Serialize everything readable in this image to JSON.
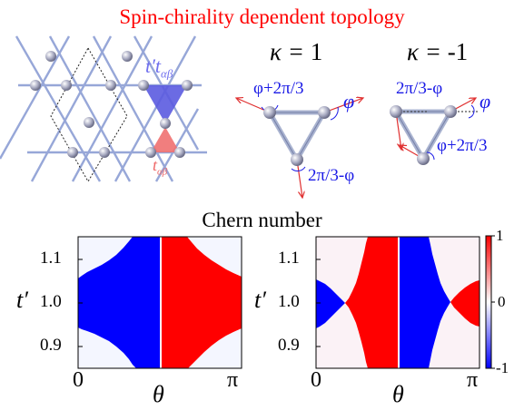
{
  "title": "Spin-chirality dependent topology",
  "title_color": "#ff0000",
  "lattice": {
    "label_upper": "t′t",
    "label_upper_sub": "αβ",
    "label_upper_color": "#7070ee",
    "label_lower": "t",
    "label_lower_sub": "αβ",
    "label_lower_color": "#ee6666"
  },
  "panels": [
    {
      "kappa_label": "κ = ",
      "kappa_value": "1",
      "angles": [
        "φ+2π/3",
        "φ",
        "2π/3-φ"
      ]
    },
    {
      "kappa_label": "κ = ",
      "kappa_value": "-1",
      "angles": [
        "2π/3-φ",
        "φ",
        "φ+2π/3"
      ]
    }
  ],
  "chern_title": "Chern number",
  "axes": {
    "ylabel": "t′",
    "xlabel": "θ",
    "yticks": [
      "1.1",
      "1.0",
      "0.9"
    ],
    "xtick_left": "0",
    "xtick_right": "π"
  },
  "colorbar": {
    "ticks": [
      "1",
      "0",
      "-1"
    ],
    "colors": [
      "#0000ff",
      "#ffffff",
      "#ff0000"
    ]
  },
  "chart_data": [
    {
      "type": "heatmap",
      "title": "",
      "xlabel": "θ",
      "ylabel": "t′",
      "xlim": [
        0,
        3.1416
      ],
      "ylim": [
        0.85,
        1.15
      ],
      "clim": [
        -1,
        1
      ],
      "regions": [
        {
          "value": -1,
          "theta_range": [
            0,
            1.5708
          ]
        },
        {
          "value": 1,
          "theta_range": [
            1.5708,
            3.1416
          ]
        }
      ]
    },
    {
      "type": "heatmap",
      "title": "",
      "xlabel": "θ",
      "ylabel": "t′",
      "xlim": [
        0,
        3.1416
      ],
      "ylim": [
        0.85,
        1.15
      ],
      "clim": [
        -1,
        1
      ],
      "regions": [
        {
          "value": -1,
          "theta_range": [
            0,
            0.9
          ]
        },
        {
          "value": 1,
          "theta_range": [
            0.9,
            1.5708
          ]
        },
        {
          "value": -1,
          "theta_range": [
            1.5708,
            2.24
          ]
        },
        {
          "value": 1,
          "theta_range": [
            2.24,
            3.1416
          ]
        }
      ]
    }
  ]
}
